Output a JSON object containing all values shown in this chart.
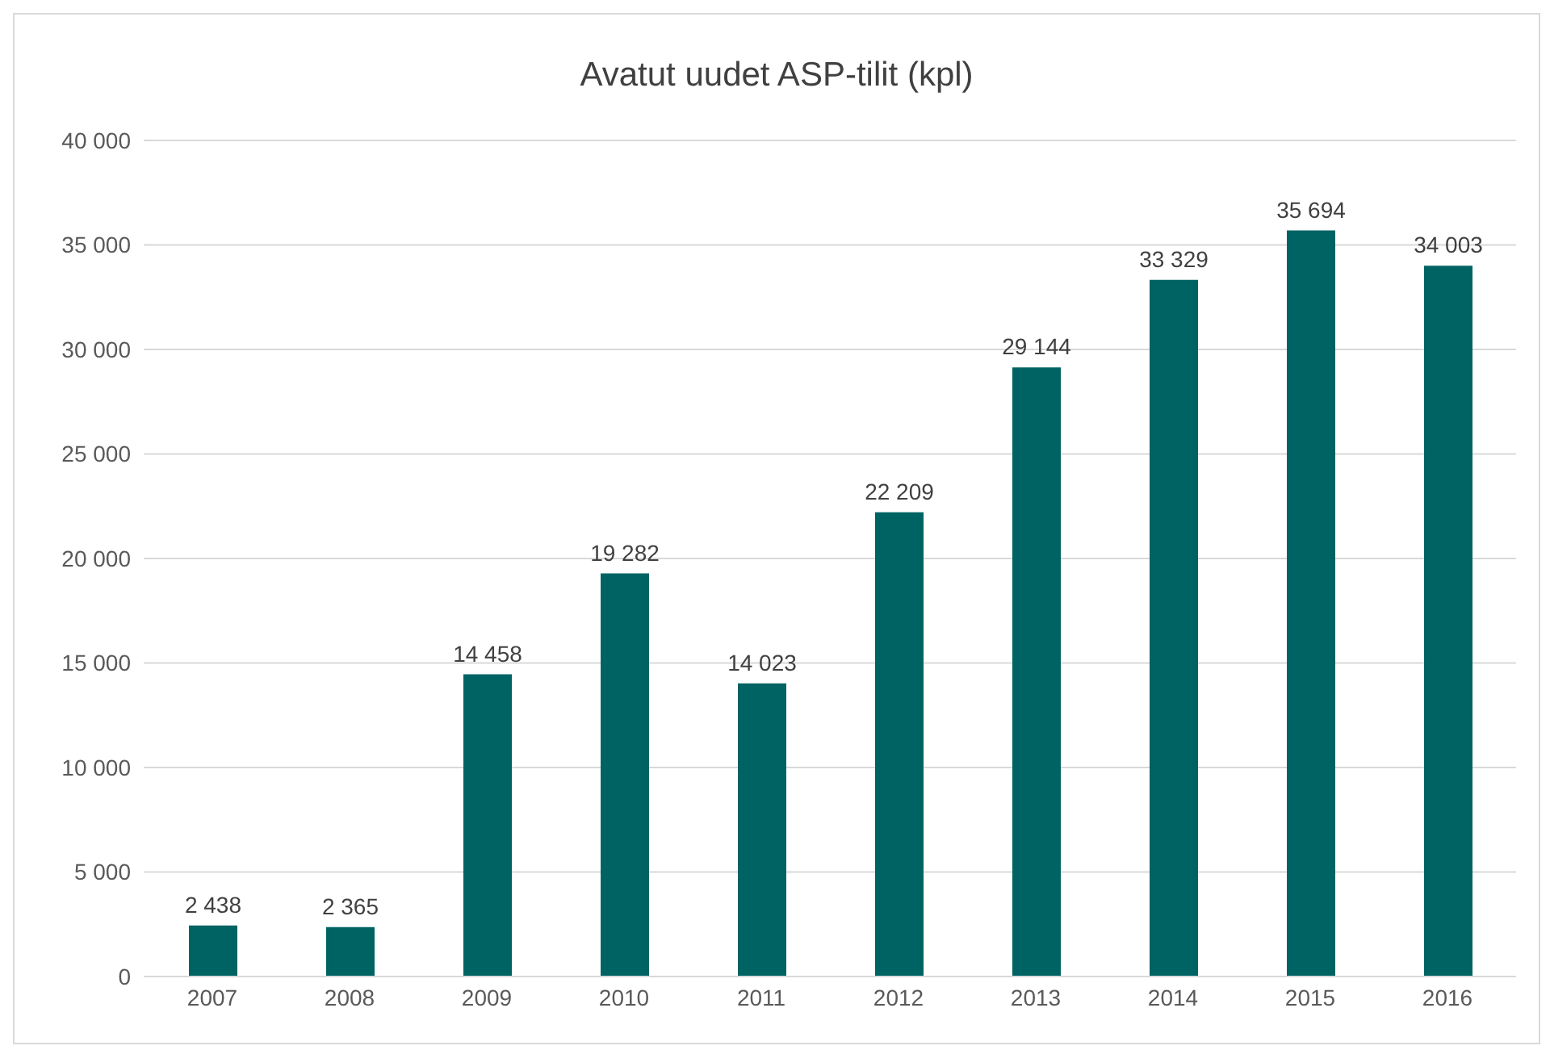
{
  "chart_data": {
    "type": "bar",
    "title": "Avatut uudet ASP-tilit (kpl)",
    "categories": [
      "2007",
      "2008",
      "2009",
      "2010",
      "2011",
      "2012",
      "2013",
      "2014",
      "2015",
      "2016"
    ],
    "values": [
      2438,
      2365,
      14458,
      19282,
      14023,
      22209,
      29144,
      33329,
      35694,
      34003
    ],
    "value_labels": [
      "2 438",
      "2 365",
      "14 458",
      "19 282",
      "14 023",
      "22 209",
      "29 144",
      "33 329",
      "35 694",
      "34 003"
    ],
    "color": "#006363",
    "ylim": [
      0,
      40000
    ],
    "yticks": [
      {
        "value": 0,
        "label": "0"
      },
      {
        "value": 5000,
        "label": "5 000"
      },
      {
        "value": 10000,
        "label": "10 000"
      },
      {
        "value": 15000,
        "label": "15 000"
      },
      {
        "value": 20000,
        "label": "20 000"
      },
      {
        "value": 25000,
        "label": "25 000"
      },
      {
        "value": 30000,
        "label": "30 000"
      },
      {
        "value": 35000,
        "label": "35 000"
      },
      {
        "value": 40000,
        "label": "40 000"
      }
    ],
    "grid": "y",
    "legend": false
  }
}
